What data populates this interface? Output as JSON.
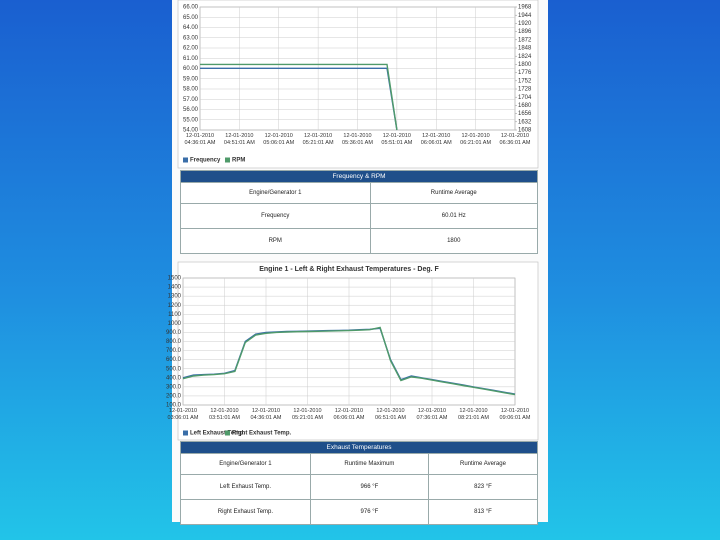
{
  "chart_data": [
    {
      "type": "line",
      "categories": [
        "12-01-2010 04:36:01 AM",
        null,
        null,
        null,
        "12-01-2010 04:51:01 AM",
        null,
        null,
        null,
        "12-01-2010 05:06:01 AM",
        null,
        null,
        null,
        "12-01-2010 05:21:01 AM",
        null,
        null,
        null,
        "12-01-2010 05:36:01 AM",
        null,
        null,
        null,
        "12-01-2010 05:51:01 AM",
        null,
        null,
        null,
        "12-01-2010 06:06:01 AM",
        null,
        null,
        null,
        "12-01-2010 06:21:01 AM",
        null,
        null,
        null,
        "12-01-2010 06:36:01 AM"
      ],
      "series": [
        {
          "name": "Frequency",
          "color": "#3a6ea8",
          "axis": "y",
          "values": [
            60.02,
            60.02,
            60.02,
            60.02,
            60.02,
            60.02,
            60.02,
            60.02,
            60.02,
            60.02,
            60.02,
            60.02,
            60.02,
            60.02,
            60.02,
            60.02,
            60.02,
            60.02,
            60.02,
            60.02,
            54,
            null,
            null,
            null,
            null,
            null,
            null,
            null,
            null,
            null,
            null,
            null,
            null
          ]
        },
        {
          "name": "RPM",
          "color": "#4f9a6a",
          "axis": "y2",
          "values": [
            1800,
            1800,
            1800,
            1800,
            1800,
            1800,
            1800,
            1800,
            1800,
            1800,
            1800,
            1800,
            1800,
            1800,
            1800,
            1800,
            1800,
            1800,
            1800,
            1800,
            1608,
            null,
            null,
            null,
            null,
            null,
            null,
            null,
            null,
            null,
            null,
            null,
            null
          ]
        }
      ],
      "ylim": [
        54,
        66
      ],
      "yticks": [
        {
          "value": 54,
          "label": "54.00"
        },
        {
          "value": 55,
          "label": "55.00"
        },
        {
          "value": 56,
          "label": "56.00"
        },
        {
          "value": 57,
          "label": "57.00"
        },
        {
          "value": 58,
          "label": "58.00"
        },
        {
          "value": 59,
          "label": "59.00"
        },
        {
          "value": 60,
          "label": "60.00"
        },
        {
          "value": 61,
          "label": "61.00"
        },
        {
          "value": 62,
          "label": "62.00"
        },
        {
          "value": 63,
          "label": "63.00"
        },
        {
          "value": 64,
          "label": "64.00"
        },
        {
          "value": 65,
          "label": "65.00"
        },
        {
          "value": 66,
          "label": "66.00"
        }
      ],
      "y2lim": [
        1608,
        1968
      ],
      "y2ticks": [
        1608,
        1632,
        1656,
        1680,
        1704,
        1728,
        1752,
        1776,
        1800,
        1824,
        1848,
        1872,
        1896,
        1920,
        1944,
        1968
      ],
      "grid": true
    },
    {
      "type": "line",
      "title": "Engine 1 - Left & Right Exhaust Temperatures - Deg. F",
      "categories": [
        "12-01-2010 03:06:01 AM",
        null,
        null,
        null,
        "12-01-2010 03:51:01 AM",
        null,
        null,
        null,
        "12-01-2010 04:36:01 AM",
        null,
        null,
        null,
        "12-01-2010 05:21:01 AM",
        null,
        null,
        null,
        "12-01-2010 06:06:01 AM",
        null,
        null,
        null,
        "12-01-2010 06:51:01 AM",
        null,
        null,
        null,
        "12-01-2010 07:36:01 AM",
        null,
        null,
        null,
        "12-01-2010 08:21:01 AM",
        null,
        null,
        null,
        "12-01-2010 09:06:01 AM"
      ],
      "series": [
        {
          "name": "Left Exhaust Temp.",
          "color": "#3a6ea8",
          "values": [
            400,
            430,
            435,
            440,
            450,
            480,
            800,
            880,
            900,
            905,
            910,
            912,
            915,
            918,
            920,
            922,
            925,
            930,
            935,
            945,
            600,
            380,
            420,
            400,
            380,
            360,
            340,
            320,
            300,
            280,
            260,
            240,
            220
          ]
        },
        {
          "name": "Right Exhaust Temp.",
          "color": "#4f9a6a",
          "values": [
            390,
            420,
            430,
            435,
            445,
            470,
            790,
            870,
            890,
            900,
            905,
            908,
            910,
            912,
            915,
            918,
            920,
            925,
            930,
            955,
            590,
            370,
            410,
            395,
            375,
            355,
            335,
            315,
            295,
            275,
            255,
            235,
            215
          ]
        }
      ],
      "ylim": [
        100,
        1500
      ],
      "yticks": [
        {
          "value": 100,
          "label": "100.0"
        },
        {
          "value": 200,
          "label": "200.0"
        },
        {
          "value": 300,
          "label": "300.0"
        },
        {
          "value": 400,
          "label": "400.0"
        },
        {
          "value": 500,
          "label": "500.0"
        },
        {
          "value": 600,
          "label": "600.0"
        },
        {
          "value": 700,
          "label": "700.0"
        },
        {
          "value": 800,
          "label": "800.0"
        },
        {
          "value": 900,
          "label": "900.0"
        },
        1000,
        1100,
        1200,
        1300,
        1400,
        1500
      ],
      "grid": true
    }
  ],
  "tables": [
    {
      "title": "Frequency & RPM",
      "header": [
        "Engine/Generator 1",
        "Runtime Average"
      ],
      "rows": [
        [
          "Frequency",
          "60.01 Hz"
        ],
        [
          "RPM",
          "1800"
        ]
      ]
    },
    {
      "title": "Exhaust Temperatures",
      "header": [
        "Engine/Generator 1",
        "Runtime Maximum",
        "Runtime Average"
      ],
      "rows": [
        [
          "Left Exhaust Temp.",
          "966 °F",
          "823 °F"
        ],
        [
          "Right Exhaust Temp.",
          "976 °F",
          "813 °F"
        ]
      ]
    }
  ]
}
